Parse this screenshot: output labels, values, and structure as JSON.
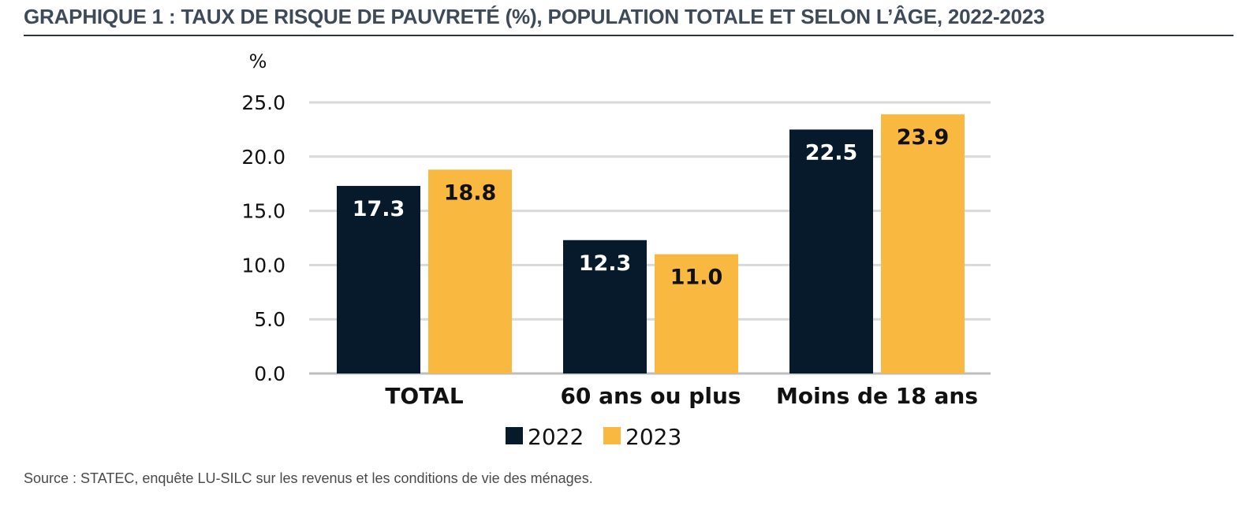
{
  "title": "GRAPHIQUE 1 : TAUX DE RISQUE DE PAUVRETÉ (%), POPULATION TOTALE ET SELON L’ÂGE, 2022-2023",
  "source": "Source : STATEC, enquête LU-SILC sur les revenus et les conditions de vie des ménages.",
  "chart_data": {
    "type": "bar",
    "title": "GRAPHIQUE 1 : TAUX DE RISQUE DE PAUVRETÉ (%), POPULATION TOTALE ET SELON L’ÂGE, 2022-2023",
    "ylabel": "%",
    "xlabel": "",
    "ylim": [
      0,
      25
    ],
    "yticks": [
      "0.0",
      "5.0",
      "10.0",
      "15.0",
      "20.0",
      "25.0"
    ],
    "grid": true,
    "legend_position": "bottom",
    "categories": [
      "TOTAL",
      "60 ans ou plus",
      "Moins de 18 ans"
    ],
    "series": [
      {
        "name": "2022",
        "color": "#071a2c",
        "label_color": "#ffffff",
        "values": [
          17.3,
          12.3,
          22.5
        ],
        "labels": [
          "17.3",
          "12.3",
          "22.5"
        ]
      },
      {
        "name": "2023",
        "color": "#f9b83f",
        "label_color": "#111111",
        "values": [
          18.8,
          11.0,
          23.9
        ],
        "labels": [
          "18.8",
          "11.0",
          "23.9"
        ]
      }
    ]
  }
}
